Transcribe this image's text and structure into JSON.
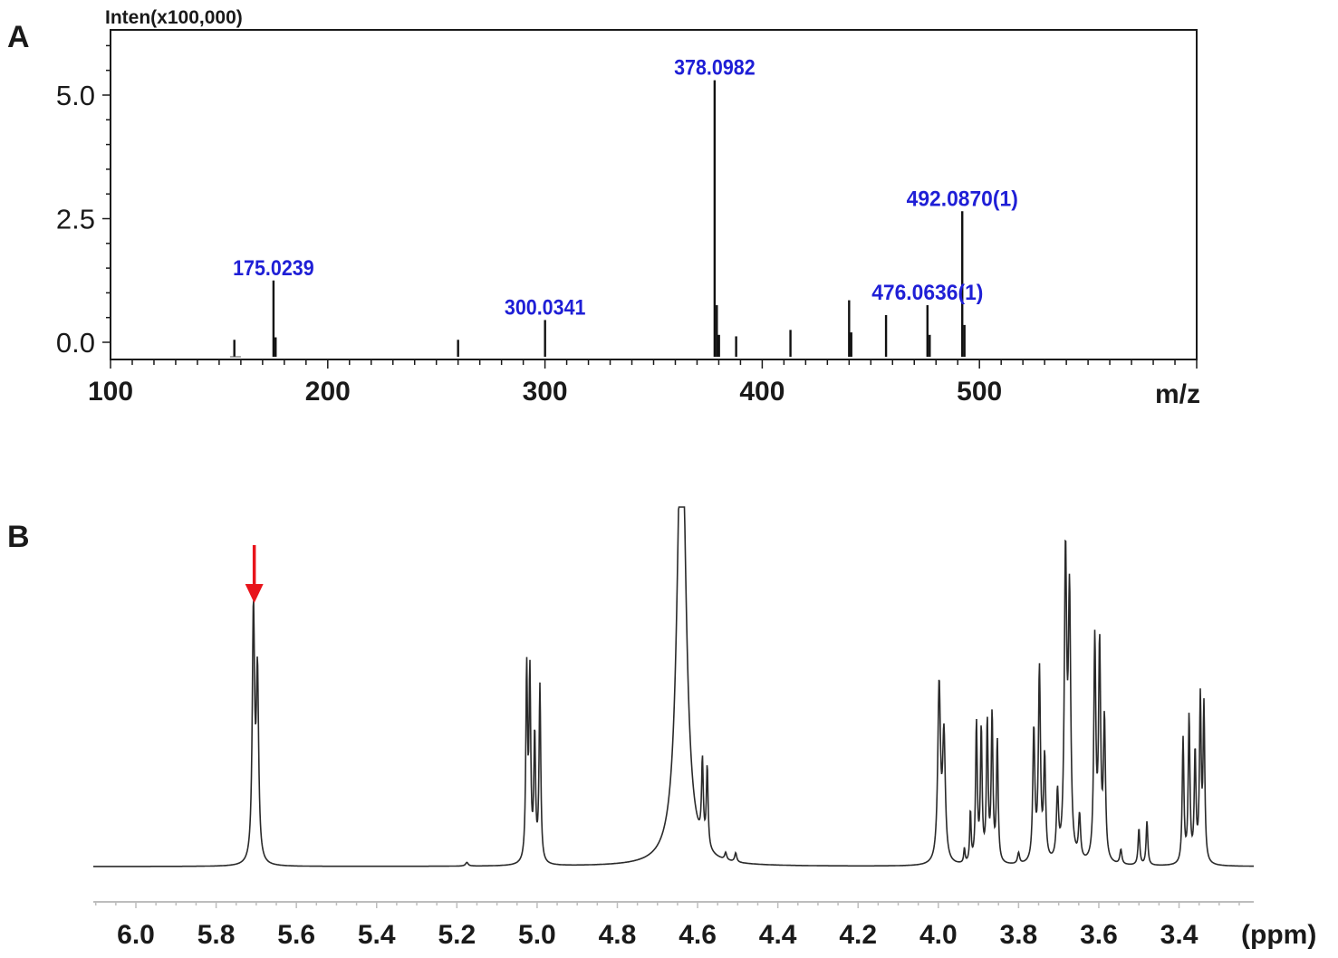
{
  "chart_data": [
    {
      "panel": "A",
      "type": "bar",
      "ylabel": "Inten(x100,000)",
      "xlabel": "m/z",
      "xlim": [
        100,
        600
      ],
      "ylim": [
        -0.35,
        6.2
      ],
      "xticks": [
        100,
        200,
        300,
        400,
        500
      ],
      "xtick_labels": [
        "100",
        "200",
        "300",
        "400",
        "500"
      ],
      "yticks": [
        0.0,
        2.5,
        5.0
      ],
      "ytick_labels": [
        "0.0",
        "2.5",
        "5.0"
      ],
      "peaks": [
        {
          "mz": 157,
          "intensity": 0.05
        },
        {
          "mz": 175.0239,
          "intensity": 1.25
        },
        {
          "mz": 176.0,
          "intensity": 0.1
        },
        {
          "mz": 260,
          "intensity": 0.05
        },
        {
          "mz": 300.0341,
          "intensity": 0.45
        },
        {
          "mz": 378.0982,
          "intensity": 5.3
        },
        {
          "mz": 379.1,
          "intensity": 0.75
        },
        {
          "mz": 380.1,
          "intensity": 0.15
        },
        {
          "mz": 388,
          "intensity": 0.12
        },
        {
          "mz": 413,
          "intensity": 0.25
        },
        {
          "mz": 440,
          "intensity": 0.85
        },
        {
          "mz": 441,
          "intensity": 0.2
        },
        {
          "mz": 457,
          "intensity": 0.55
        },
        {
          "mz": 476.0636,
          "intensity": 0.75
        },
        {
          "mz": 477.1,
          "intensity": 0.15
        },
        {
          "mz": 492.087,
          "intensity": 2.65
        },
        {
          "mz": 493.1,
          "intensity": 0.35
        }
      ],
      "annotations": [
        {
          "text": "175.0239",
          "mz": 175.0239,
          "intensity": 1.25
        },
        {
          "text": "300.0341",
          "mz": 300.0341,
          "intensity": 0.45
        },
        {
          "text": "378.0982",
          "mz": 378.0982,
          "intensity": 5.3
        },
        {
          "text": "476.0636(1)",
          "mz": 476.0636,
          "intensity": 0.75
        },
        {
          "text": "492.0870(1)",
          "mz": 492.087,
          "intensity": 2.65
        }
      ]
    },
    {
      "panel": "B",
      "type": "line",
      "xlabel": "(ppm)",
      "xlim": [
        6.1,
        3.25
      ],
      "x_reversed": true,
      "ylim": [
        0,
        1
      ],
      "xticks": [
        6.0,
        5.8,
        5.6,
        5.4,
        5.2,
        5.0,
        4.8,
        4.6,
        4.4,
        4.2,
        4.0,
        3.8,
        3.6,
        3.4
      ],
      "xtick_labels": [
        "6.0",
        "5.8",
        "5.6",
        "5.4",
        "5.2",
        "5.0",
        "4.8",
        "4.6",
        "4.4",
        "4.2",
        "4.0",
        "3.8",
        "3.6",
        "3.4"
      ],
      "baseline": 0.0,
      "arrow_at_ppm": 5.705,
      "arrow_color": "#e8141b",
      "peaks": [
        {
          "ppm": 5.707,
          "height": 0.68,
          "width": 0.0035
        },
        {
          "ppm": 5.697,
          "height": 0.5,
          "width": 0.0035
        },
        {
          "ppm": 5.175,
          "height": 0.01,
          "width": 0.004
        },
        {
          "ppm": 5.026,
          "height": 0.52,
          "width": 0.0025
        },
        {
          "ppm": 5.018,
          "height": 0.5,
          "width": 0.0025
        },
        {
          "ppm": 5.006,
          "height": 0.34,
          "width": 0.0025
        },
        {
          "ppm": 4.993,
          "height": 0.48,
          "width": 0.0025
        },
        {
          "ppm": 4.64,
          "height": 1.3,
          "width": 0.013
        },
        {
          "ppm": 4.588,
          "height": 0.22,
          "width": 0.0025
        },
        {
          "ppm": 4.576,
          "height": 0.22,
          "width": 0.0025
        },
        {
          "ppm": 4.53,
          "height": 0.02,
          "width": 0.003
        },
        {
          "ppm": 4.505,
          "height": 0.025,
          "width": 0.003
        },
        {
          "ppm": 3.998,
          "height": 0.48,
          "width": 0.004
        },
        {
          "ppm": 3.986,
          "height": 0.34,
          "width": 0.004
        },
        {
          "ppm": 3.935,
          "height": 0.04,
          "width": 0.002
        },
        {
          "ppm": 3.92,
          "height": 0.14,
          "width": 0.002
        },
        {
          "ppm": 3.905,
          "height": 0.38,
          "width": 0.0025
        },
        {
          "ppm": 3.893,
          "height": 0.36,
          "width": 0.0025
        },
        {
          "ppm": 3.878,
          "height": 0.38,
          "width": 0.0025
        },
        {
          "ppm": 3.866,
          "height": 0.4,
          "width": 0.0025
        },
        {
          "ppm": 3.853,
          "height": 0.33,
          "width": 0.0025
        },
        {
          "ppm": 3.8,
          "height": 0.03,
          "width": 0.003
        },
        {
          "ppm": 3.762,
          "height": 0.36,
          "width": 0.003
        },
        {
          "ppm": 3.748,
          "height": 0.52,
          "width": 0.003
        },
        {
          "ppm": 3.735,
          "height": 0.28,
          "width": 0.003
        },
        {
          "ppm": 3.703,
          "height": 0.18,
          "width": 0.003
        },
        {
          "ppm": 3.683,
          "height": 0.82,
          "width": 0.0035
        },
        {
          "ppm": 3.673,
          "height": 0.7,
          "width": 0.0035
        },
        {
          "ppm": 3.648,
          "height": 0.12,
          "width": 0.003
        },
        {
          "ppm": 3.61,
          "height": 0.6,
          "width": 0.003
        },
        {
          "ppm": 3.598,
          "height": 0.58,
          "width": 0.003
        },
        {
          "ppm": 3.586,
          "height": 0.38,
          "width": 0.003
        },
        {
          "ppm": 3.545,
          "height": 0.04,
          "width": 0.003
        },
        {
          "ppm": 3.5,
          "height": 0.1,
          "width": 0.0025
        },
        {
          "ppm": 3.48,
          "height": 0.12,
          "width": 0.0025
        },
        {
          "ppm": 3.39,
          "height": 0.34,
          "width": 0.0025
        },
        {
          "ppm": 3.375,
          "height": 0.4,
          "width": 0.0025
        },
        {
          "ppm": 3.36,
          "height": 0.3,
          "width": 0.0025
        },
        {
          "ppm": 3.347,
          "height": 0.44,
          "width": 0.0025
        },
        {
          "ppm": 3.338,
          "height": 0.42,
          "width": 0.0025
        }
      ]
    }
  ],
  "panels": {
    "a_label": "A",
    "b_label": "B"
  },
  "colors": {
    "axis": "#1a1a1a",
    "peak_label": "#1f1fd6",
    "spectrum": "#2a2a2a",
    "arrow": "#e8141b"
  }
}
